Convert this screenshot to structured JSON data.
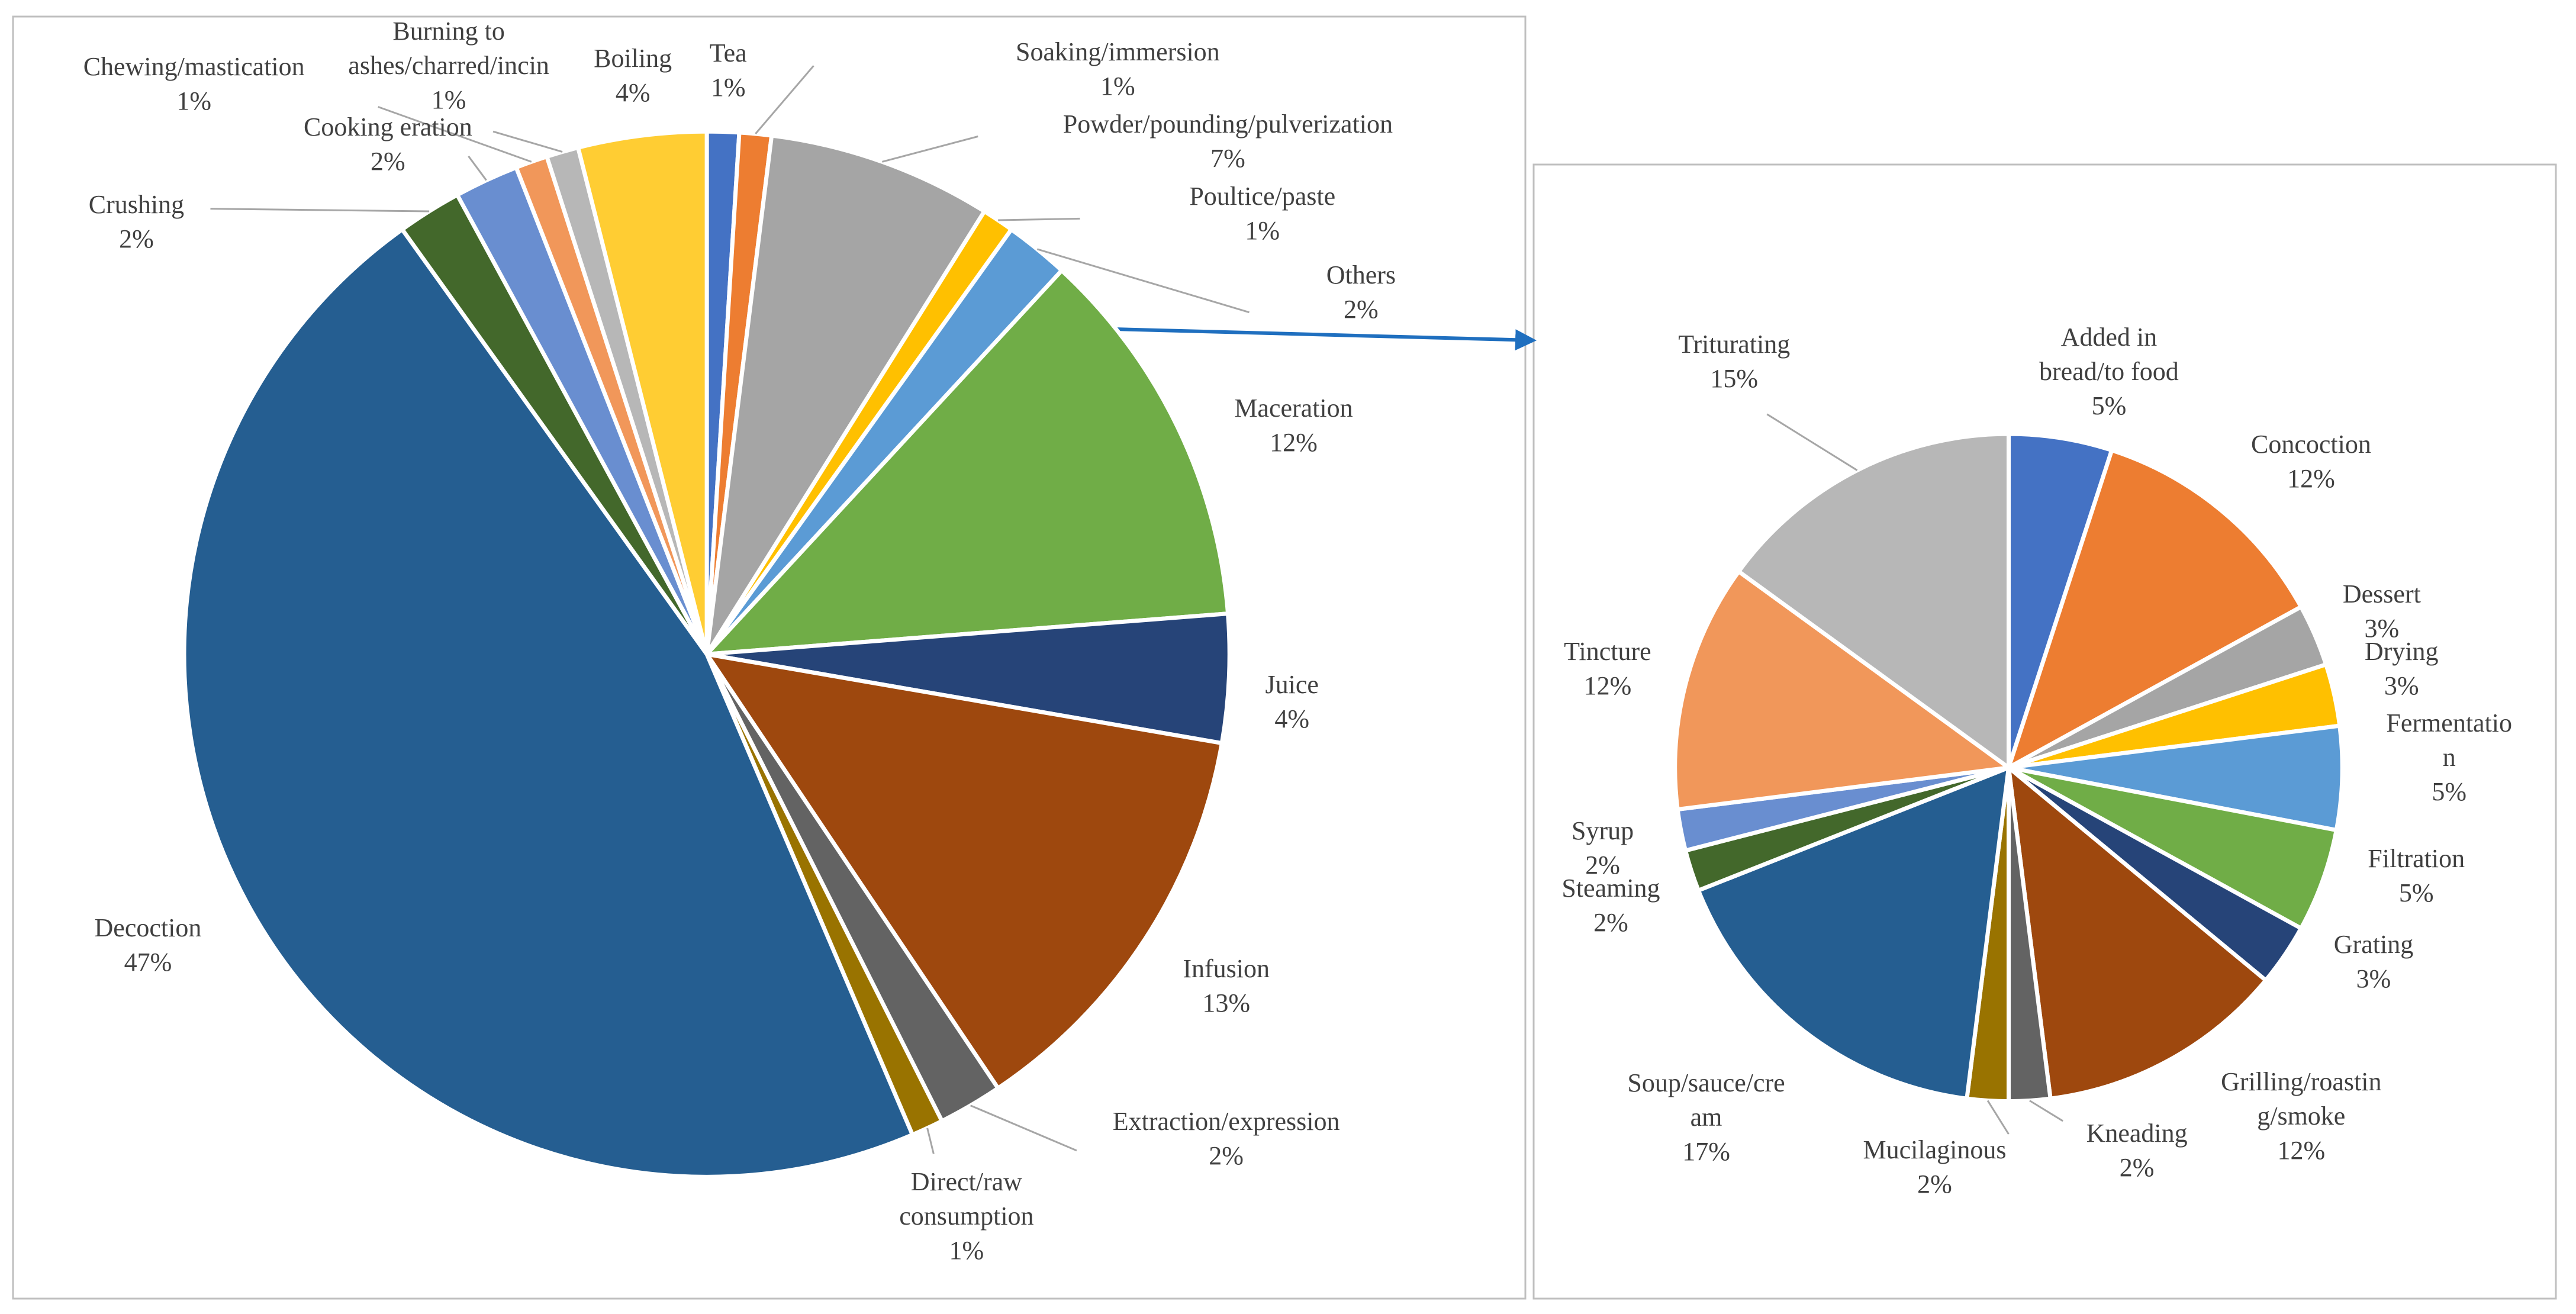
{
  "chart_data": [
    {
      "type": "pie",
      "categories": [
        "Tea",
        "Soaking/immersion",
        "Powder/pounding/pulverization",
        "Poultice/paste",
        "Others",
        "Maceration",
        "Juice",
        "Infusion",
        "Extraction/expression",
        "Direct/raw consumption",
        "Decoction",
        "Crushing",
        "Cooking eration",
        "Chewing/mastication",
        "Burning to ashes/charred/incin",
        "Boiling"
      ],
      "values": [
        1,
        1,
        7,
        1,
        2,
        12,
        4,
        13,
        2,
        1,
        47,
        2,
        2,
        1,
        1,
        4
      ],
      "value_labels": [
        "1%",
        "1%",
        "7%",
        "1%",
        "2%",
        "12%",
        "4%",
        "13%",
        "2%",
        "1%",
        "47%",
        "2%",
        "2%",
        "1%",
        "1%",
        "4%"
      ],
      "colors": [
        "#4472c4",
        "#ed7d31",
        "#a5a5a5",
        "#ffc000",
        "#5b9bd5",
        "#70ad47",
        "#264478",
        "#9e480e",
        "#636363",
        "#997300",
        "#255e91",
        "#43682b",
        "#698ed0",
        "#f1975a",
        "#b7b7b7",
        "#ffcd33"
      ]
    },
    {
      "type": "pie",
      "categories": [
        "Added in bread/to food",
        "Concoction",
        "Dessert",
        "Drying",
        "Fermentation",
        "Filtration",
        "Grating",
        "Grilling/roasting/smoke",
        "Kneading",
        "Mucilaginous",
        "Soup/sauce/cream",
        "Steaming",
        "Syrup",
        "Tincture",
        "Triturating"
      ],
      "values": [
        5,
        12,
        3,
        3,
        5,
        5,
        3,
        12,
        2,
        2,
        17,
        2,
        2,
        12,
        15
      ],
      "value_labels": [
        "5%",
        "12%",
        "3%",
        "3%",
        "5%",
        "5%",
        "3%",
        "12%",
        "2%",
        "2%",
        "17%",
        "2%",
        "2%",
        "12%",
        "15%"
      ],
      "colors": [
        "#4472c4",
        "#ed7d31",
        "#a5a5a5",
        "#ffc000",
        "#5b9bd5",
        "#70ad47",
        "#264478",
        "#9e480e",
        "#636363",
        "#997300",
        "#255e91",
        "#43682b",
        "#698ed0",
        "#f1975a",
        "#b7b7b7"
      ]
    }
  ]
}
